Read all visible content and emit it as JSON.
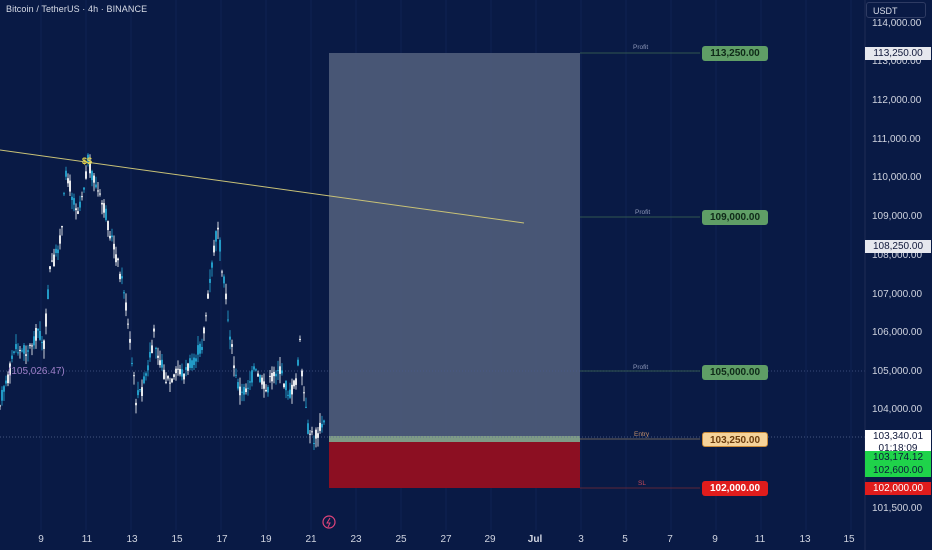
{
  "header": {
    "symbol_title": "Bitcoin / TetherUS · 4h · BINANCE",
    "currency": "USDT"
  },
  "price_axis": {
    "ticks": [
      "114,000.00",
      "113,000.00",
      "112,000.00",
      "111,000.00",
      "110,000.00",
      "109,000.00",
      "108,000.00",
      "107,000.00",
      "106,000.00",
      "105,000.00",
      "104,000.00",
      "101,500.00"
    ]
  },
  "date_axis": {
    "ticks": [
      "9",
      "11",
      "13",
      "15",
      "17",
      "19",
      "21",
      "23",
      "25",
      "27",
      "29",
      "Jul",
      "3",
      "5",
      "7",
      "9",
      "11",
      "13",
      "15"
    ]
  },
  "axis_tags": {
    "target_1": "113,250.00",
    "mid_marker": "108,250.00",
    "current_price": "103,340.01",
    "countdown": "01:18:09",
    "bid": "103,174.12",
    "ask": "102,600.00",
    "stop": "102,000.00"
  },
  "position": {
    "targets": [
      {
        "tag": "Profit",
        "price": "113,250.00"
      },
      {
        "tag": "Profit",
        "price": "109,000.00"
      },
      {
        "tag": "Profit",
        "price": "105,000.00"
      }
    ],
    "entry": {
      "tag": "Entry",
      "price": "103,250.00"
    },
    "stop": {
      "tag": "SL",
      "price": "102,000.00"
    }
  },
  "indicator": {
    "ma_value": "(105,026.47)"
  },
  "annotation": {
    "liquidity_marker": "$$"
  },
  "colors": {
    "background": "#091a45",
    "bull_candle": "#26a9d4",
    "bear_candle": "#ffffff",
    "profit_zone": "#4c5a78",
    "loss_zone": "#8c0f22",
    "profit_tag": "#5f9e66",
    "entry_tag": "#f6d39a",
    "stop_tag": "#e01c1c",
    "trendline": "#c9c277"
  }
}
